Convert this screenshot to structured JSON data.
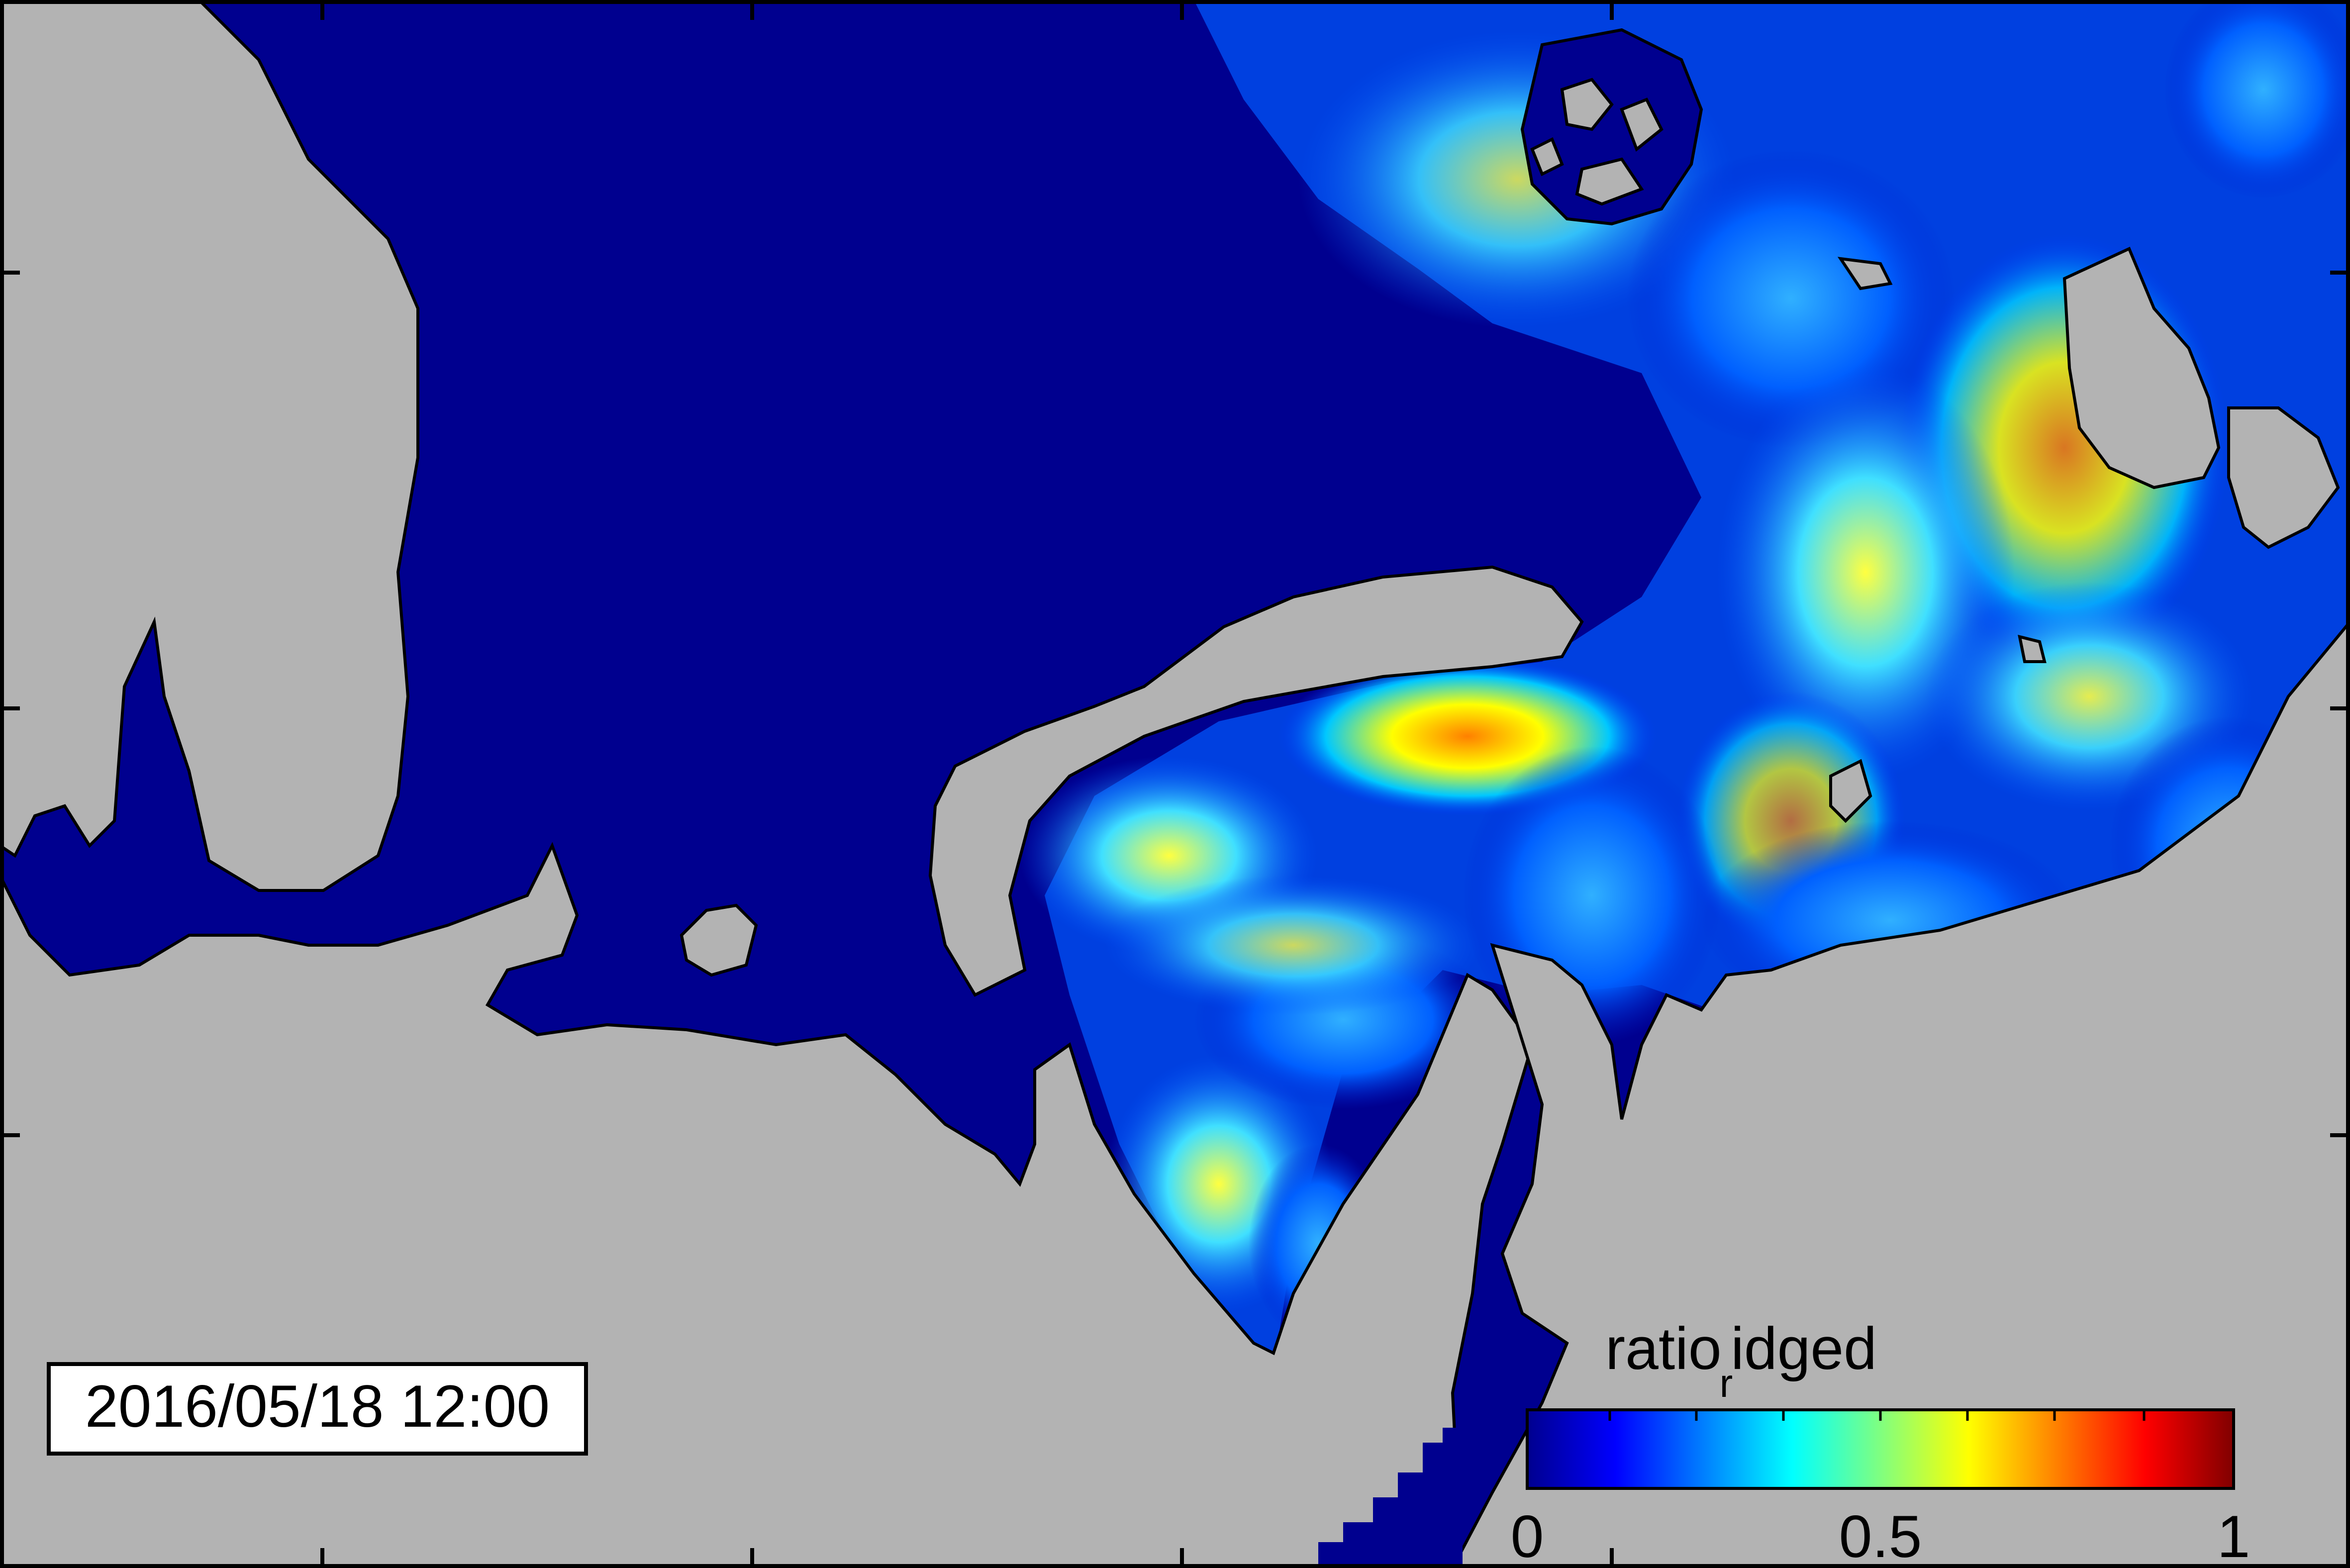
{
  "timestamp": "2016/05/18 12:00",
  "colorbar": {
    "title_main": "ratio",
    "title_sub": "r",
    "title_rest": "idged",
    "ticks": [
      "0",
      "0.5",
      "1"
    ],
    "range": [
      0,
      1
    ],
    "colormap": "jet"
  },
  "colors": {
    "land": "#b3b3b3",
    "sea": "#00008f",
    "frame": "#000000"
  }
}
